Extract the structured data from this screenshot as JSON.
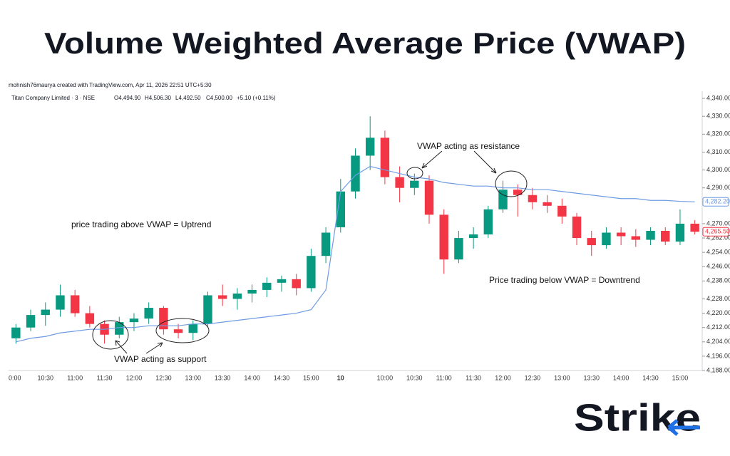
{
  "header": {
    "title": "Volume Weighted Average Price (VWAP)"
  },
  "chart_data": {
    "type": "candlestick",
    "credit": "mohnish76maurya created with TradingView.com, Apr 11, 2026 22:51 UTC+5:30",
    "symbol": "Titan Company Limited · 3 · NSE",
    "ohlc_legend": [
      "O4,494.90",
      "H4,506.30",
      "L4,492.50",
      "C4,500.00",
      "+5.10 (+0.11%)"
    ],
    "categories": [
      "0:00",
      null,
      "10:30",
      null,
      "11:00",
      null,
      "11:30",
      null,
      "12:00",
      null,
      "12:30",
      null,
      "13:00",
      null,
      "13:30",
      null,
      "14:00",
      null,
      "14:30",
      null,
      "15:00",
      null,
      "10",
      null,
      null,
      "10:00",
      null,
      "10:30",
      null,
      "11:00",
      null,
      "11:30",
      null,
      "12:00",
      null,
      "12:30",
      null,
      "13:00",
      null,
      "13:30",
      null,
      "14:00",
      null,
      "14:30",
      null,
      "15:00",
      null
    ],
    "candles": {
      "up_color": "#089981",
      "down_color": "#f23645",
      "open": [
        4206,
        4212,
        4219,
        4222,
        4230,
        4220,
        4214,
        4208,
        4215,
        4217,
        4223,
        4211,
        4209,
        4214,
        4230,
        4228,
        4231,
        4233,
        4237,
        4239,
        4234,
        4252,
        4268,
        4288,
        4308,
        4318,
        4296,
        4290,
        4294,
        4275,
        4250,
        4262,
        4264,
        4278,
        4289,
        4286,
        4282,
        4280,
        4274,
        4262,
        4258,
        4265,
        4263,
        4261,
        4266,
        4260,
        4270
      ],
      "high": [
        4214,
        4222,
        4226,
        4236,
        4233,
        4224,
        4216,
        4218,
        4220,
        4226,
        4224,
        4214,
        4216,
        4232,
        4236,
        4234,
        4236,
        4240,
        4241,
        4242,
        4256,
        4268,
        4295,
        4312,
        4330,
        4322,
        4302,
        4298,
        4297,
        4278,
        4266,
        4268,
        4280,
        4294,
        4292,
        4290,
        4286,
        4284,
        4276,
        4266,
        4268,
        4268,
        4267,
        4268,
        4268,
        4278,
        4272
      ],
      "low": [
        4203,
        4210,
        4213,
        4218,
        4218,
        4212,
        4203,
        4206,
        4210,
        4214,
        4208,
        4206,
        4205,
        4212,
        4224,
        4222,
        4226,
        4229,
        4232,
        4230,
        4232,
        4248,
        4265,
        4284,
        4300,
        4292,
        4282,
        4286,
        4270,
        4242,
        4248,
        4256,
        4262,
        4276,
        4274,
        4278,
        4276,
        4270,
        4258,
        4252,
        4256,
        4258,
        4257,
        4258,
        4258,
        4258,
        4264
      ],
      "close": [
        4212,
        4219,
        4222,
        4230,
        4220,
        4214,
        4208,
        4215,
        4217,
        4223,
        4211,
        4209,
        4214,
        4230,
        4228,
        4231,
        4233,
        4237,
        4239,
        4234,
        4252,
        4265,
        4288,
        4308,
        4318,
        4296,
        4290,
        4294,
        4275,
        4250,
        4262,
        4264,
        4278,
        4289,
        4286,
        4282,
        4280,
        4274,
        4262,
        4258,
        4265,
        4263,
        4261,
        4266,
        4260,
        4270,
        4265.5
      ]
    },
    "vwap": {
      "color": "#6f9be3",
      "values": [
        4204,
        4206,
        4207,
        4209,
        4210,
        4211,
        4211,
        4212,
        4212,
        4213,
        4213,
        4213,
        4214,
        4214,
        4215,
        4216,
        4217,
        4218,
        4219,
        4220,
        4222,
        4233,
        4288,
        4297,
        4302,
        4300,
        4298,
        4296,
        4295,
        4293,
        4292,
        4291,
        4291,
        4290,
        4290,
        4289,
        4289,
        4288,
        4287,
        4286,
        4285,
        4284,
        4284,
        4283,
        4283,
        4282.5,
        4282.2
      ]
    },
    "price_tags": [
      {
        "value": 4282.2,
        "label": "4,282.20",
        "color": "#6f9be3"
      },
      {
        "value": 4265.5,
        "label": "4,265.50",
        "color": "#f23645"
      }
    ],
    "ylim": [
      4188,
      4344
    ],
    "yticks": [
      {
        "value": 4188,
        "label": "4,188.00"
      },
      {
        "value": 4196,
        "label": "4,196.00"
      },
      {
        "value": 4204,
        "label": "4,204.00"
      },
      {
        "value": 4212,
        "label": "4,212.00"
      },
      {
        "value": 4220,
        "label": "4,220.00"
      },
      {
        "value": 4228,
        "label": "4,228.00"
      },
      {
        "value": 4238,
        "label": "4,238.00"
      },
      {
        "value": 4246,
        "label": "4,246.00"
      },
      {
        "value": 4254,
        "label": "4,254.00"
      },
      {
        "value": 4262,
        "label": "4,262.00"
      },
      {
        "value": 4270,
        "label": "4,270.00"
      },
      {
        "value": 4290,
        "label": "4,290.00"
      },
      {
        "value": 4300,
        "label": "4,300.00"
      },
      {
        "value": 4310,
        "label": "4,310.00"
      },
      {
        "value": 4320,
        "label": "4,320.00"
      },
      {
        "value": 4330,
        "label": "4,330.00"
      },
      {
        "value": 4340,
        "label": "4,340.00"
      }
    ],
    "grid": false,
    "annotations": [
      "price trading above VWAP = Uptrend",
      "VWAP acting as support",
      "VWAP acting as resistance",
      "Price trading below VWAP = Downtrend"
    ]
  },
  "logo": "Strike"
}
